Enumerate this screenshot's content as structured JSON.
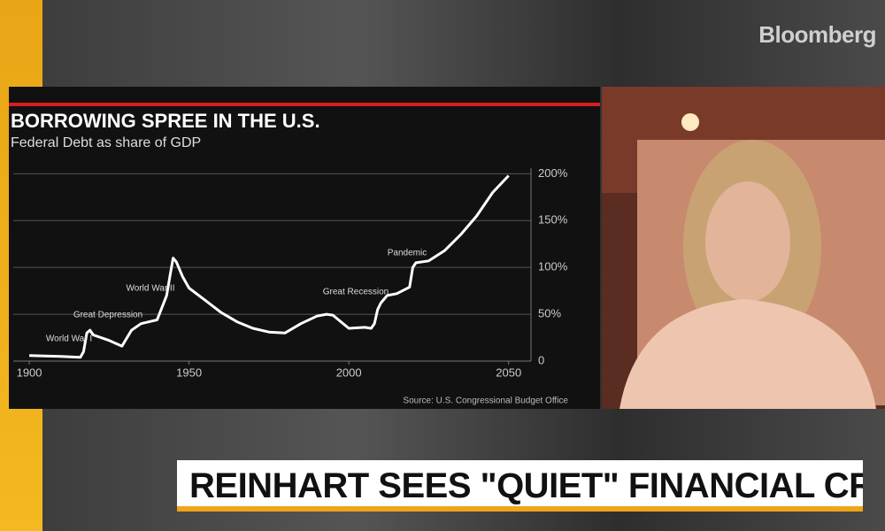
{
  "brand": "Bloomberg",
  "headline": "REINHART SEES \"QUIET\" FINANCIAL CRISIS",
  "chart_data": {
    "type": "line",
    "title": "BORROWING SPREE IN THE U.S.",
    "subtitle": "Federal Debt as share of GDP",
    "source": "Source: U.S. Congressional Budget Office",
    "annotations": [
      "World War I",
      "Great Depression",
      "World War II",
      "Great Recession",
      "Pandemic"
    ],
    "x": [
      1900,
      1910,
      1916,
      1917,
      1918,
      1919,
      1920,
      1925,
      1929,
      1932,
      1935,
      1940,
      1943,
      1944,
      1945,
      1946,
      1948,
      1950,
      1955,
      1960,
      1965,
      1970,
      1975,
      1980,
      1985,
      1990,
      1993,
      1995,
      2000,
      2005,
      2007,
      2008,
      2009,
      2010,
      2012,
      2015,
      2019,
      2020,
      2021,
      2025,
      2030,
      2035,
      2040,
      2045,
      2050
    ],
    "series": [
      {
        "name": "Federal Debt",
        "color": "#ffffff",
        "values": [
          6,
          5,
          4,
          10,
          30,
          33,
          28,
          22,
          16,
          33,
          40,
          44,
          70,
          90,
          110,
          106,
          90,
          78,
          65,
          52,
          42,
          35,
          31,
          30,
          40,
          48,
          50,
          49,
          35,
          36,
          35,
          40,
          55,
          62,
          70,
          72,
          79,
          100,
          105,
          107,
          118,
          135,
          155,
          180,
          198
        ]
      }
    ],
    "xlim": [
      1895,
      2057
    ],
    "ylim": [
      0,
      206
    ],
    "xticks": [
      1900,
      1950,
      2000,
      2050
    ],
    "yticks": [
      0,
      {
        "value": 50,
        "label": "50%"
      },
      {
        "value": 100,
        "label": "100%"
      },
      {
        "value": 150,
        "label": "150%"
      },
      {
        "value": 200,
        "label": "200%"
      }
    ],
    "grid": true
  }
}
